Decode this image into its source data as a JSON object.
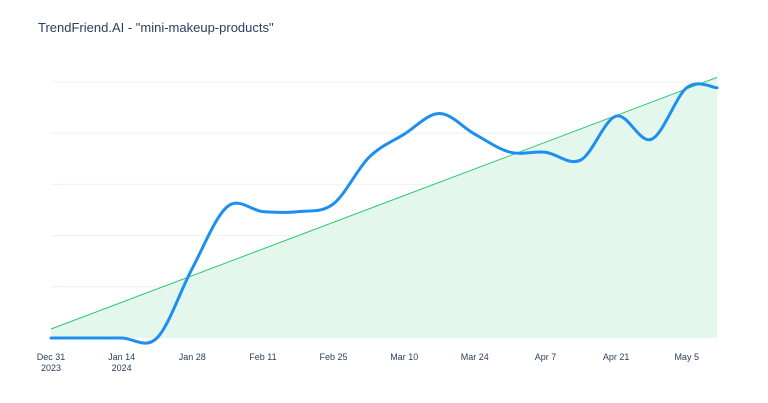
{
  "chart_data": {
    "type": "line",
    "title": "TrendFriend.AI - \"mini-makeup-products\"",
    "xlabel": "",
    "ylabel": "",
    "x_tick_labels": [
      [
        "Dec 31",
        "2023"
      ],
      [
        "Jan 14",
        "2024"
      ],
      [
        "Jan 28"
      ],
      [
        "Feb 11"
      ],
      [
        "Feb 25"
      ],
      [
        "Mar 10"
      ],
      [
        "Mar 24"
      ],
      [
        "Apr 7"
      ],
      [
        "Apr 21"
      ],
      [
        "May 5"
      ]
    ],
    "x_tick_dates": [
      "2023-12-31",
      "2024-01-14",
      "2024-01-28",
      "2024-02-11",
      "2024-02-25",
      "2024-03-10",
      "2024-03-24",
      "2024-04-07",
      "2024-04-21",
      "2024-05-05"
    ],
    "xlim": [
      "2023-12-31",
      "2024-05-11"
    ],
    "ylim": [
      0,
      100
    ],
    "grid": true,
    "y_tick_labels_visible": false,
    "series": [
      {
        "kind": "line",
        "color": "#1f8fef",
        "x": [
          "2023-12-31",
          "2024-01-07",
          "2024-01-14",
          "2024-01-21",
          "2024-01-28",
          "2024-02-04",
          "2024-02-11",
          "2024-02-18",
          "2024-02-25",
          "2024-03-03",
          "2024-03-10",
          "2024-03-17",
          "2024-03-24",
          "2024-03-31",
          "2024-04-07",
          "2024-04-14",
          "2024-04-21",
          "2024-04-28",
          "2024-05-05",
          "2024-05-11"
        ],
        "values": [
          0,
          0,
          0,
          0,
          27,
          51,
          49,
          49,
          52,
          70,
          79,
          87,
          79,
          72,
          72,
          69,
          86,
          77,
          97,
          97
        ]
      },
      {
        "kind": "trend-area",
        "color": "#2ec971",
        "fill": "#e3f7ec",
        "x": [
          "2023-12-31",
          "2024-05-11"
        ],
        "values": [
          3.5,
          101
        ]
      }
    ]
  }
}
